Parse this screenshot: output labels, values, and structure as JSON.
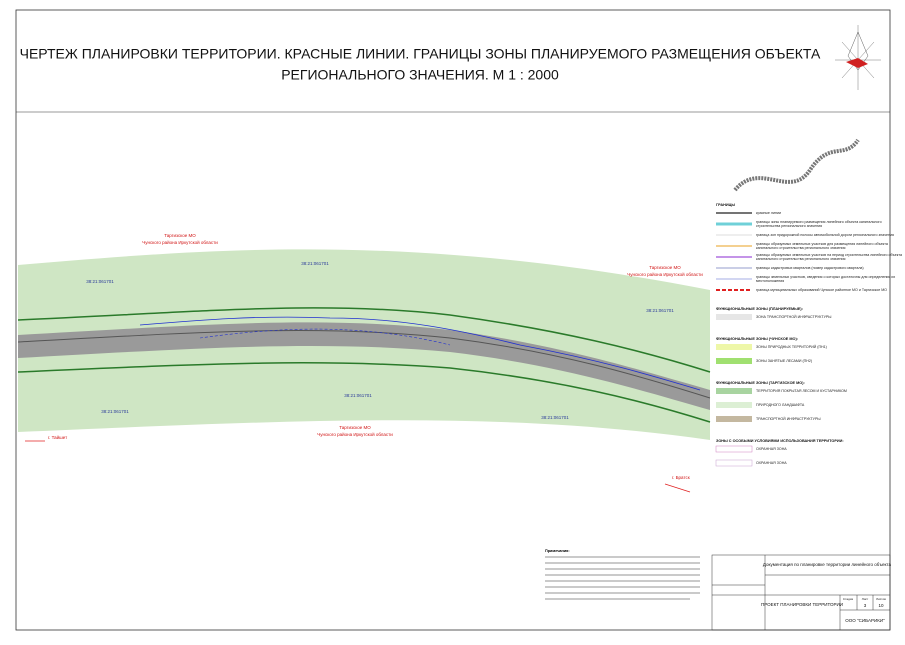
{
  "header": {
    "title_lines": [
      "ЧЕРТЕЖ ПЛАНИРОВКИ ТЕРРИТОРИИ. КРАСНЫЕ ЛИНИИ. ГРАНИЦЫ ЗОНЫ ПЛАНИРУЕМОГО РАЗМЕЩЕНИЯ ОБЪЕКТА",
      "РЕГИОНАЛЬНОГО ЗНАЧЕНИЯ. М 1 : 2000"
    ]
  },
  "map": {
    "municipalities": [
      {
        "name": "Таргизское МО",
        "region": "Чунского района Иркутской области"
      },
      {
        "name": "Таргизское МО",
        "region": "Чунского района Иркутской области"
      },
      {
        "name": "Таргизское МО",
        "region": "Чунского района Иркутской области"
      }
    ],
    "cadastral": [
      "38:21:061701",
      "38:21:061701",
      "38:21:061701",
      "38:21:061701",
      "38:21:061701",
      "38:21:061701"
    ],
    "directions": [
      "г. Тайшет",
      "г. Братск"
    ]
  },
  "legend": {
    "sections": [
      {
        "title": "ГРАНИЦЫ",
        "items": [
          "красные линии",
          "границы зоны планируемого размещения линейного объекта капитального строительства регионального значения",
          "граница зон придорожной полосы автомобильной дороги регионального значения",
          "границы образуемых земельных участков для размещения линейного объекта капитального строительства регионального значения",
          "границы образуемых земельных участков на период строительства линейного объекта капитального строительства регионального значения",
          "границы кадастровых кварталов (номер кадастрового квартала)",
          "границы земельных участков, сведения о которых достаточны для определения их местоположения",
          "граница муниципальных образований Чунское районное МО и Таргизское МО"
        ]
      },
      {
        "title": "ФУНКЦИОНАЛЬНЫЕ ЗОНЫ (ПЛАНИРУЕМЫЕ):",
        "items": [
          "ЗОНА ТРАНСПОРТНОЙ ИНФРАСТРУКТУРЫ"
        ]
      },
      {
        "title": "ФУНКЦИОНАЛЬНЫЕ ЗОНЫ (ЧУНСКОЕ МО):",
        "items": [
          "ЗОНЫ ПРИРОДНЫХ ТЕРРИТОРИЙ (ПН1)",
          "ЗОНЫ ЗАНЯТЫЕ ЛЕСАМИ (ПН2)"
        ]
      },
      {
        "title": "ФУНКЦИОНАЛЬНЫЕ ЗОНЫ (ТАРГИЗСКОЕ МО):",
        "items": [
          "ТЕРРИТОРИЯ ПОКРЫТАЯ ЛЕСОМ И КУСТАРНИКОМ",
          "ПРИРОДНОГО ЛАНДШАФТА",
          "ТРАНСПОРТНОЙ ИНФРАСТРУКТУРЫ"
        ]
      },
      {
        "title": "ЗОНЫ С ОСОБЫМИ УСЛОВИЯМИ ИСПОЛЬЗОВАНИЯ ТЕРРИТОРИИ:",
        "items": [
          "ОХРАННАЯ ЗОНА",
          "ОХРАННАЯ ЗОНА"
        ]
      }
    ]
  },
  "notes": {
    "title": "Примечания:"
  },
  "stamp": {
    "document": "Документация по планировке территории линейного объекта",
    "sheet_title": "ПРОЕКТ ПЛАНИРОВКИ ТЕРРИТОРИИ",
    "company": "ООО \"СИБАРИКИ\"",
    "columns": [
      "Стадия",
      "Лист",
      "Листов"
    ],
    "sheet": "3",
    "sheets": "10"
  }
}
